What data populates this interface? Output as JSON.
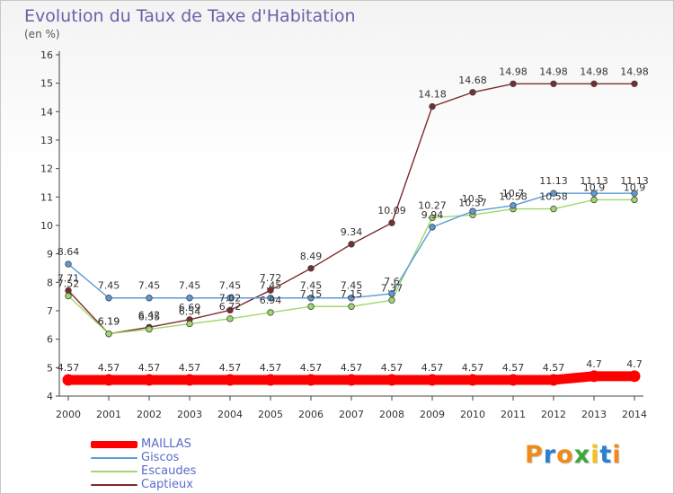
{
  "header": {
    "title": "Evolution du Taux de Taxe d'Habitation",
    "subtitle": "(en %)"
  },
  "logo": {
    "letters": [
      "P",
      "r",
      "o",
      "x",
      "i",
      "t",
      "i"
    ],
    "colors": [
      "#f08a1a",
      "#2a7fd0",
      "#f08a1a",
      "#3aa83a",
      "#f4c21a",
      "#2a7fd0",
      "#f08a1a"
    ]
  },
  "chart_data": {
    "type": "line",
    "title": "Evolution du Taux de Taxe d'Habitation",
    "ylabel": "(en %)",
    "xlabel": "",
    "x": [
      "2000",
      "2001",
      "2002",
      "2003",
      "2004",
      "2005",
      "2006",
      "2007",
      "2008",
      "2009",
      "2010",
      "2011",
      "2012",
      "2013",
      "2014"
    ],
    "ylim": [
      4,
      16
    ],
    "yticks": [
      "4",
      "5",
      "6",
      "7",
      "8",
      "9",
      "10",
      "11",
      "12",
      "13",
      "14",
      "15",
      "16"
    ],
    "grid": false,
    "legend_position": "bottom-left",
    "series": [
      {
        "name": "MAILLAS",
        "color": "#ff0000",
        "values": [
          4.57,
          4.57,
          4.57,
          4.57,
          4.57,
          4.57,
          4.57,
          4.57,
          4.57,
          4.57,
          4.57,
          4.57,
          4.57,
          4.7,
          4.7
        ],
        "labels": [
          "4.57",
          "4.57",
          "4.57",
          "4.57",
          "4.57",
          "4.57",
          "4.57",
          "4.57",
          "4.57",
          "4.57",
          "4.57",
          "4.57",
          "4.57",
          "4.7",
          "4.7"
        ]
      },
      {
        "name": "Giscos",
        "color": "#5b9ad6",
        "values": [
          8.64,
          7.45,
          7.45,
          7.45,
          7.45,
          7.45,
          7.45,
          7.45,
          7.6,
          9.94,
          10.5,
          10.7,
          11.13,
          11.13,
          11.13
        ],
        "labels": [
          "8.64",
          "7.45",
          "7.45",
          "7.45",
          "7.45",
          "7.45",
          "7.45",
          "7.45",
          "7.6",
          "9.94",
          "10.5",
          "10.7",
          "11.13",
          "11.13",
          "11.13"
        ]
      },
      {
        "name": "Escaudes",
        "color": "#9fd86a",
        "values": [
          7.52,
          6.19,
          6.35,
          6.54,
          6.72,
          6.94,
          7.15,
          7.15,
          7.37,
          10.27,
          10.37,
          10.58,
          10.58,
          10.9,
          10.9
        ],
        "labels": [
          "7.52",
          "6.19",
          "6.35",
          "6.54",
          "6.72",
          "6.94",
          "7.15",
          "7.15",
          "7.37",
          "10.27",
          "10.37",
          "10.58",
          "10.58",
          "10.9",
          "10.9"
        ]
      },
      {
        "name": "Captieux",
        "color": "#7a2d2d",
        "values": [
          7.71,
          6.19,
          6.42,
          6.69,
          7.02,
          7.72,
          8.49,
          9.34,
          10.09,
          14.18,
          14.68,
          14.98,
          14.98,
          14.98,
          14.98
        ],
        "labels": [
          "7.71",
          "6.19",
          "6.42",
          "6.69",
          "7.02",
          "7.72",
          "8.49",
          "9.34",
          "10.09",
          "14.18",
          "14.68",
          "14.98",
          "14.98",
          "14.98",
          "14.98"
        ]
      }
    ]
  }
}
